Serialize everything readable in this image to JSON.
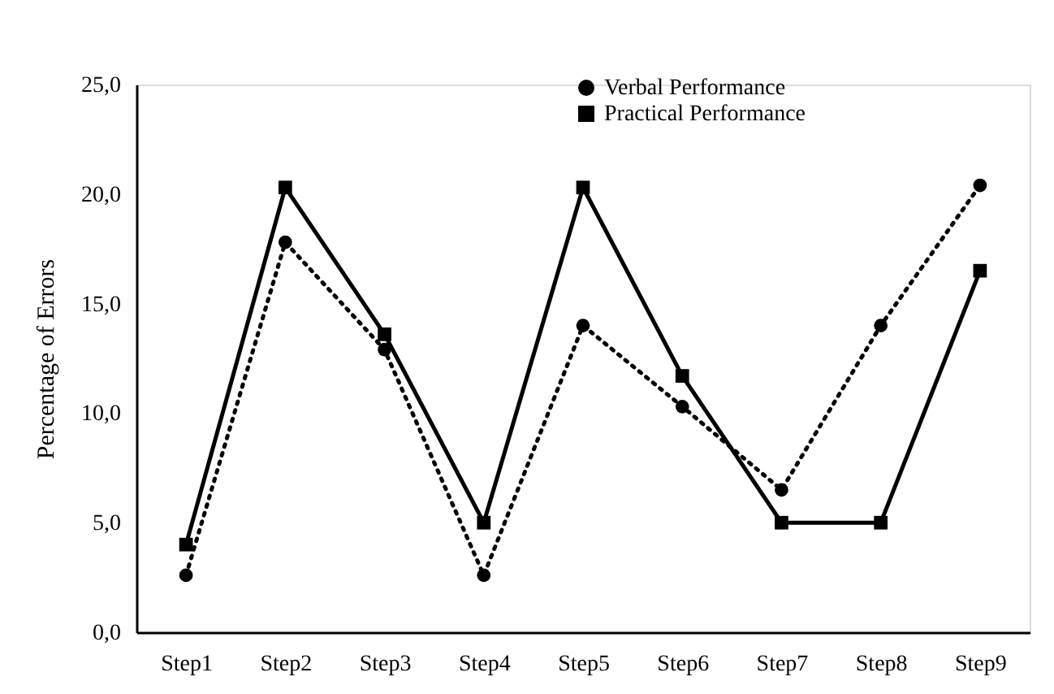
{
  "chart_data": {
    "type": "line",
    "ylabel": "Percentage of Errors",
    "categories": [
      "Step1",
      "Step2",
      "Step3",
      "Step4",
      "Step5",
      "Step6",
      "Step7",
      "Step8",
      "Step9"
    ],
    "series": [
      {
        "name": "Verbal Performance",
        "color": "#000000",
        "marker": "circle",
        "line_style": "dotted",
        "values": [
          2.6,
          17.8,
          12.9,
          2.6,
          14.0,
          10.3,
          6.5,
          14.0,
          20.4
        ]
      },
      {
        "name": "Practical Performance",
        "color": "#000000",
        "marker": "square",
        "line_style": "solid",
        "values": [
          4.0,
          20.3,
          13.6,
          5.0,
          20.3,
          11.7,
          5.0,
          5.0,
          16.5
        ]
      }
    ],
    "ylim": [
      0,
      25
    ],
    "yticks": [
      {
        "value": 0,
        "label": "0,0"
      },
      {
        "value": 5,
        "label": "5,0"
      },
      {
        "value": 10,
        "label": "10,0"
      },
      {
        "value": 15,
        "label": "15,0"
      },
      {
        "value": 20,
        "label": "20,0"
      },
      {
        "value": 25,
        "label": "25,0"
      }
    ],
    "grid": false,
    "legend": "top"
  }
}
